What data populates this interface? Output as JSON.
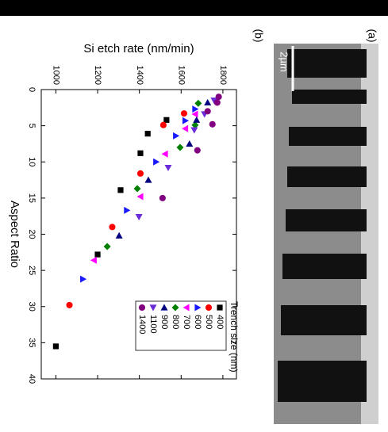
{
  "chart_data": {
    "type": "scatter",
    "panel_label": "(b)",
    "x_label": "Aspect Ratio",
    "y_label": "Si etch rate (nm/min)",
    "legend_title": "Trench size (nm)",
    "xlim": [
      0,
      40
    ],
    "xticks": [
      0,
      5,
      10,
      15,
      20,
      25,
      30,
      35,
      40
    ],
    "ylim": [
      930,
      1865
    ],
    "yticks": [
      1000,
      1200,
      1400,
      1600,
      1800
    ],
    "series": [
      {
        "name": "400",
        "color": "#000000",
        "marker": "square",
        "x": [
          35.5,
          22.8,
          13.9,
          8.8,
          6.1,
          4.2
        ],
        "values": [
          1000,
          1200,
          1310,
          1405,
          1440,
          1530
        ]
      },
      {
        "name": "500",
        "color": "#ff0000",
        "marker": "circle",
        "x": [
          29.8,
          19,
          11.6,
          4.9,
          3.3
        ],
        "values": [
          1065,
          1270,
          1405,
          1515,
          1614
        ]
      },
      {
        "name": "600",
        "color": "#1a1aff",
        "marker": "up",
        "x": [
          26.2,
          16.7,
          10,
          6.4,
          4.3,
          2.7
        ],
        "values": [
          1130,
          1340,
          1480,
          1575,
          1620,
          1667
        ]
      },
      {
        "name": "700",
        "color": "#ff00ff",
        "marker": "down",
        "x": [
          23.6,
          14.8,
          8.9,
          5.4,
          3.4
        ],
        "values": [
          1182,
          1405,
          1523,
          1620,
          1667
        ]
      },
      {
        "name": "800",
        "color": "#008000",
        "marker": "diamond",
        "x": [
          21.7,
          13.7,
          8,
          4.9,
          1.9
        ],
        "values": [
          1246,
          1390,
          1595,
          1667,
          1682
        ]
      },
      {
        "name": "900",
        "color": "#000080",
        "marker": "left",
        "x": [
          20.2,
          12.5,
          7.5,
          4.2,
          1.8
        ],
        "values": [
          1303,
          1443,
          1640,
          1674,
          1727
        ]
      },
      {
        "name": "1100",
        "color": "#6a2bd9",
        "marker": "right",
        "x": [
          17.6,
          10.8,
          5.6,
          3.4,
          1.5
        ],
        "values": [
          1398,
          1538,
          1663,
          1712,
          1758
        ]
      },
      {
        "name": "1400",
        "color": "#800080",
        "marker": "circle",
        "x": [
          15,
          8.4,
          4.8,
          3,
          1,
          1.8
        ],
        "values": [
          1511,
          1678,
          1750,
          1727,
          1780,
          1773
        ]
      }
    ]
  },
  "image": {
    "panel_label": "(a)",
    "scale_bar": "2µm"
  }
}
